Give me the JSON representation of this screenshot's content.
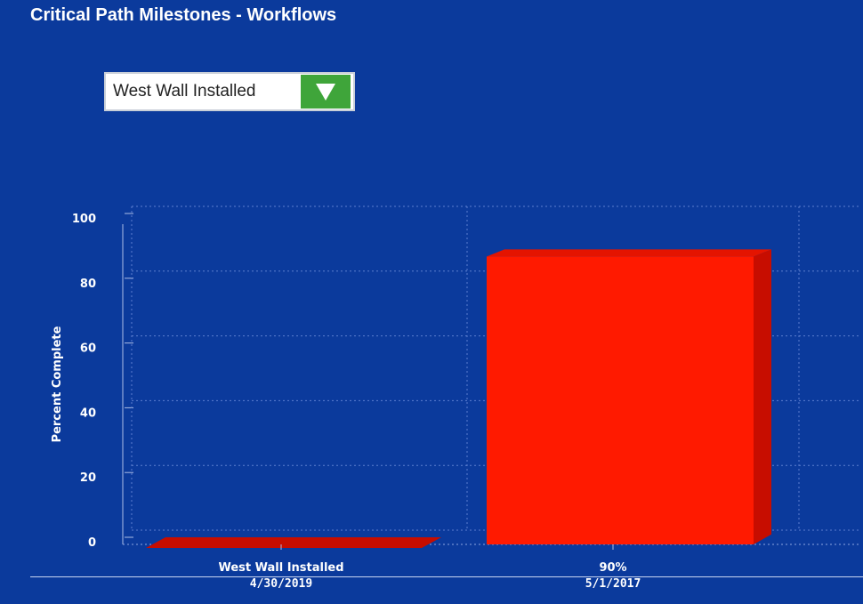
{
  "header": {
    "title": "Critical Path Milestones - Workflows"
  },
  "milestone_select": {
    "selected": "West Wall Installed",
    "button_icon": "chevron-down-icon"
  },
  "colors": {
    "background": "#0b3a9c",
    "bar_front": "#ff1a00",
    "bar_side": "#c70d00",
    "bar_top": "#e41400",
    "dropdown_button": "#3fa53a"
  },
  "chart_data": {
    "type": "bar",
    "style": "3d",
    "ylabel": "Percent Complete",
    "xlabel": "",
    "ylim": [
      0,
      100
    ],
    "yticks": [
      "0",
      "20",
      "40",
      "60",
      "80",
      "100"
    ],
    "grid": true,
    "legend": "none",
    "categories": [
      {
        "line1": "West Wall Installed",
        "line2": "4/30/2019"
      },
      {
        "line1": "90%",
        "line2": "5/1/2017"
      }
    ],
    "values": [
      0,
      90
    ]
  }
}
